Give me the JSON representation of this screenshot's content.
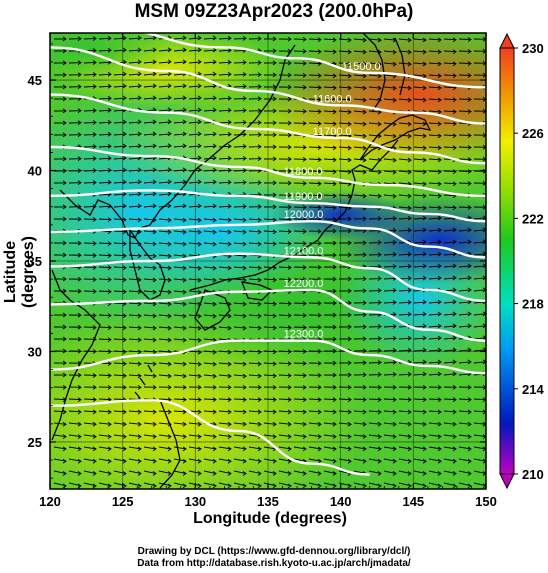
{
  "title": "MSM 09Z23Apr2023 (200.0hPa)",
  "x_axis_label": "Longitude (degrees)",
  "y_axis_label": "Latitude  (degrees)",
  "credit_line_1": "Drawing by DCL (https://www.gfd-dennou.org/library/dcl/)",
  "credit_line_2": "Data from http://database.rish.kyoto-u.ac.jp/arch/jmadata/",
  "chart_data": {
    "type": "heatmap",
    "x_range": [
      120,
      150
    ],
    "y_range": [
      22.4,
      47.6
    ],
    "x_ticks": [
      120,
      125,
      130,
      135,
      140,
      145,
      150
    ],
    "y_ticks": [
      25,
      30,
      35,
      40,
      45
    ],
    "colorbar": {
      "min": 210,
      "max": 230,
      "tick_labels": [
        "230",
        "226",
        "222",
        "218",
        "214",
        "210"
      ],
      "colors": [
        "#c000c0",
        "#0018c0",
        "#00a0f0",
        "#00e0c0",
        "#20c820",
        "#a0e000",
        "#f0f000",
        "#f0a000",
        "#f04020"
      ]
    },
    "contours": [
      {
        "label": "11500.0",
        "points": [
          [
            124,
            47.8
          ],
          [
            132,
            46.8
          ],
          [
            137,
            46.2
          ],
          [
            142,
            45.4
          ],
          [
            150,
            44.6
          ]
        ]
      },
      {
        "label": "11600.0",
        "points": [
          [
            120,
            46.8
          ],
          [
            128,
            45.5
          ],
          [
            134,
            44.4
          ],
          [
            140,
            43.6
          ],
          [
            145,
            43.2
          ],
          [
            150,
            42.6
          ]
        ]
      },
      {
        "label": "11700.0",
        "points": [
          [
            120,
            44.2
          ],
          [
            128,
            43.2
          ],
          [
            134,
            42.3
          ],
          [
            140,
            41.8
          ],
          [
            145,
            41.0
          ],
          [
            150,
            40.4
          ]
        ]
      },
      {
        "label": "11800.0",
        "points": [
          [
            120,
            41.3
          ],
          [
            127,
            40.8
          ],
          [
            133,
            40.2
          ],
          [
            138,
            39.6
          ],
          [
            143,
            39.2
          ],
          [
            150,
            38.6
          ]
        ]
      },
      {
        "label": "11900.0",
        "points": [
          [
            120,
            38.6
          ],
          [
            127,
            38.9
          ],
          [
            133,
            38.6
          ],
          [
            138,
            38.2
          ],
          [
            142,
            38.0
          ],
          [
            146,
            37.6
          ],
          [
            150,
            37.2
          ]
        ]
      },
      {
        "label": "12000.0",
        "points": [
          [
            120,
            36.6
          ],
          [
            127,
            36.8
          ],
          [
            133,
            37.0
          ],
          [
            138,
            37.2
          ],
          [
            142,
            36.8
          ],
          [
            146,
            35.8
          ],
          [
            150,
            35.2
          ]
        ]
      },
      {
        "label": "12100.0",
        "points": [
          [
            120,
            34.7
          ],
          [
            127,
            35.0
          ],
          [
            133,
            35.4
          ],
          [
            138,
            35.2
          ],
          [
            142,
            34.6
          ],
          [
            146,
            33.4
          ],
          [
            150,
            32.8
          ]
        ]
      },
      {
        "label": "12200.0",
        "points": [
          [
            120,
            32.6
          ],
          [
            127,
            32.8
          ],
          [
            133,
            33.3
          ],
          [
            138,
            33.4
          ],
          [
            142,
            32.2
          ],
          [
            146,
            31.2
          ],
          [
            150,
            30.6
          ]
        ]
      },
      {
        "label": "12300.0",
        "points": [
          [
            120,
            29.0
          ],
          [
            127,
            29.8
          ],
          [
            133,
            30.6
          ],
          [
            138,
            30.6
          ],
          [
            142,
            29.8
          ],
          [
            146,
            29.2
          ],
          [
            150,
            28.8
          ]
        ]
      },
      {
        "label": "",
        "points": [
          [
            120,
            27.0
          ],
          [
            127,
            27.3
          ],
          [
            133,
            25.6
          ],
          [
            138,
            23.8
          ],
          [
            142,
            23.2
          ]
        ]
      }
    ]
  }
}
